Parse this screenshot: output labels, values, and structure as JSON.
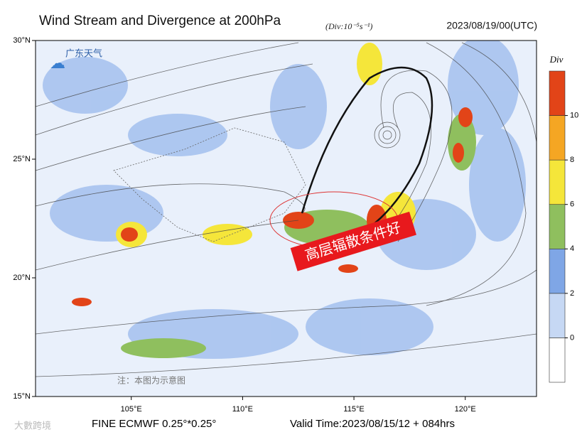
{
  "header": {
    "title": "Wind Stream and Divergence at 200hPa",
    "unit": "(Div:10⁻⁵s⁻¹)",
    "date": "2023/08/19/00(UTC)"
  },
  "logo": "广东天气",
  "map": {
    "lonlim": [
      100.7,
      123.2
    ],
    "latlim": [
      15,
      30
    ],
    "lonticks": [
      {
        "value": 105,
        "label": "105°E"
      },
      {
        "value": 110,
        "label": "110°E"
      },
      {
        "value": 115,
        "label": "115°E"
      },
      {
        "value": 120,
        "label": "120°E"
      }
    ],
    "latticks": [
      {
        "value": 30,
        "label": "30°N"
      },
      {
        "value": 25,
        "label": "25°N"
      },
      {
        "value": 20,
        "label": "20°N"
      },
      {
        "value": 15,
        "label": "15°N"
      }
    ],
    "annotation": "高层辐散条件好",
    "note": "注：本图为示意图"
  },
  "colorbar": {
    "label": "Div",
    "lim": [
      -2,
      12
    ],
    "levels": [
      -2,
      0,
      2,
      4,
      6,
      8,
      10,
      12
    ],
    "colors": [
      "#ffffff",
      "#c6d8f4",
      "#7fa6e6",
      "#8fbf5e",
      "#f5e63a",
      "#f5a623",
      "#e24418"
    ],
    "ticks": [
      0,
      2,
      4,
      6,
      8,
      10
    ]
  },
  "footer": {
    "model": "FINE ECMWF 0.25°*0.25°",
    "valid": "Valid Time:2023/08/15/12 + 084hrs",
    "watermark": "大數跨境"
  }
}
